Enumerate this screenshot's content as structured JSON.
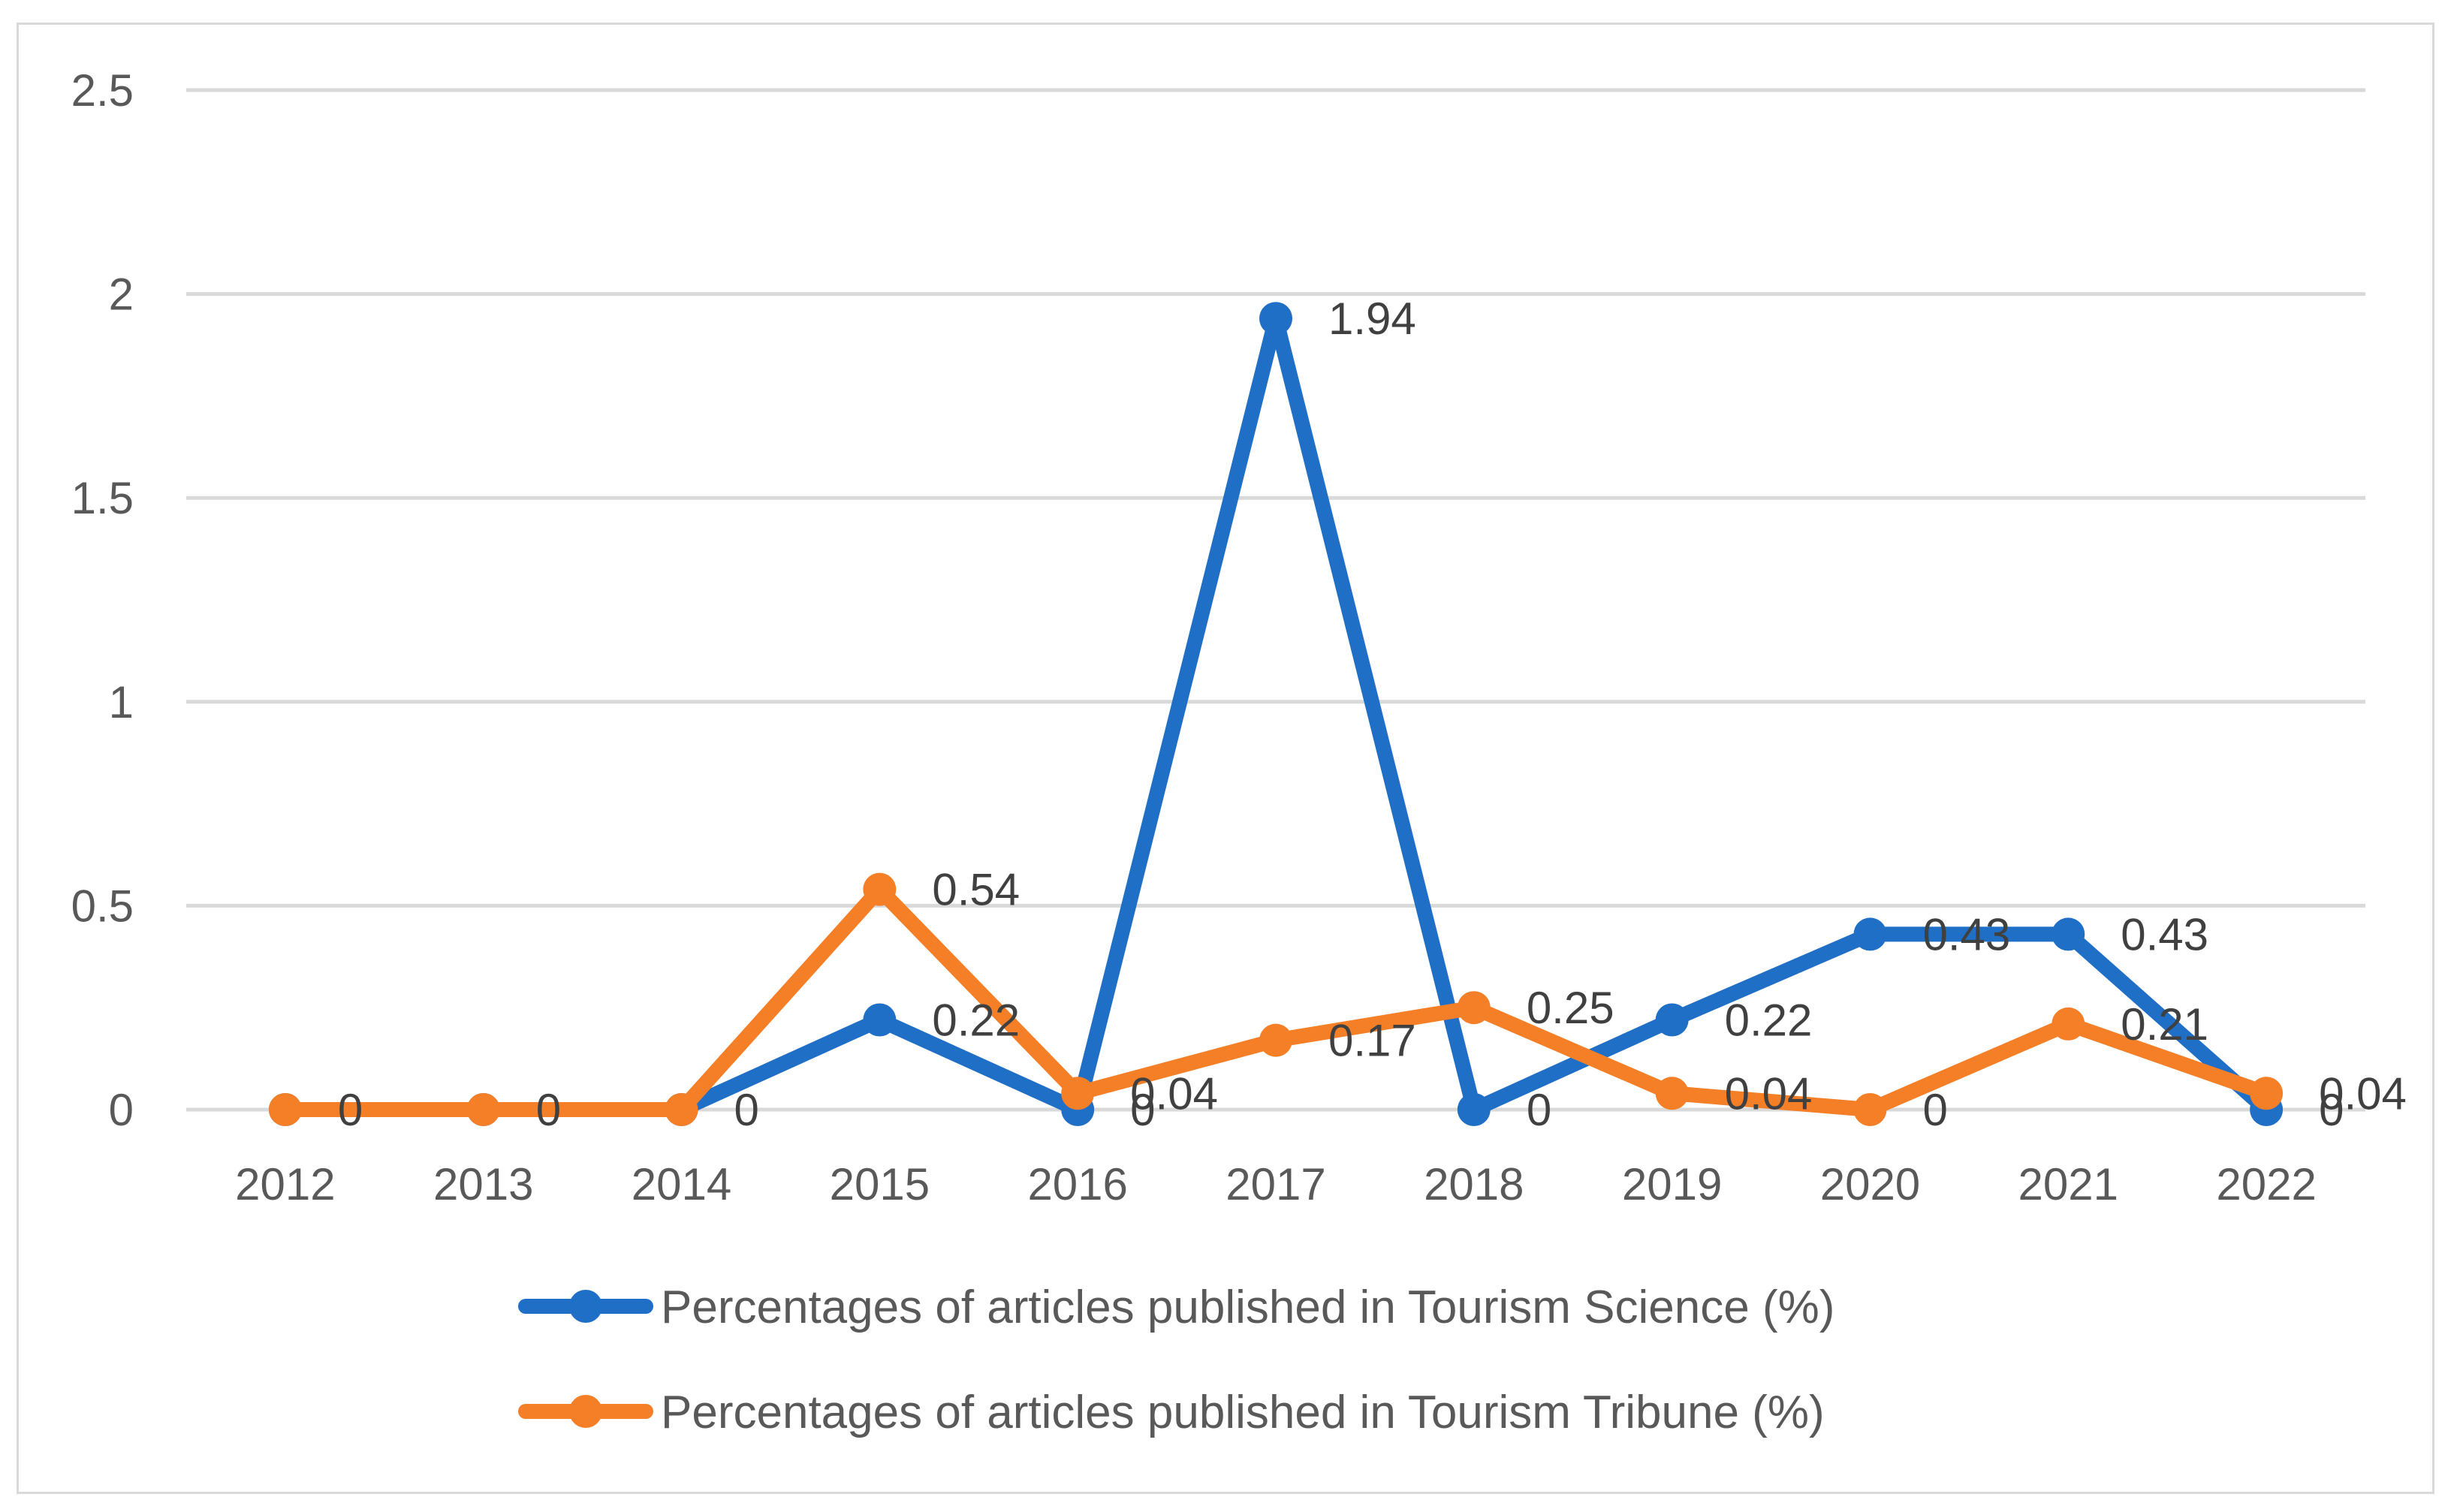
{
  "chart_data": {
    "type": "line",
    "title": "",
    "xlabel": "",
    "ylabel": "",
    "categories": [
      "2012",
      "2013",
      "2014",
      "2015",
      "2016",
      "2017",
      "2018",
      "2019",
      "2020",
      "2021",
      "2022"
    ],
    "ylim": [
      0,
      2.5
    ],
    "yticks": [
      0,
      0.5,
      1,
      1.5,
      2,
      2.5
    ],
    "ytick_labels": [
      "0",
      "0.5",
      "1",
      "1.5",
      "2",
      "2.5"
    ],
    "grid": true,
    "legend_position": "bottom",
    "series": [
      {
        "name": "Percentages of articles published in Tourism Science (%)",
        "color": "#1f6fc6",
        "values": [
          0,
          0,
          0,
          0.22,
          0,
          1.94,
          0,
          0.22,
          0.43,
          0.43,
          0
        ],
        "labels": [
          "0",
          "0",
          "0",
          "0.22",
          "0",
          "1.94",
          "0",
          "0.22",
          "0.43",
          "0.43",
          "0"
        ]
      },
      {
        "name": "Percentages of articles published in Tourism Tribune (%)",
        "color": "#f57f27",
        "values": [
          0,
          0,
          0,
          0.54,
          0.04,
          0.17,
          0.25,
          0.04,
          0,
          0.21,
          0.04
        ],
        "labels": [
          "",
          "",
          "",
          "0.54",
          "0.04",
          "0.17",
          "0.25",
          "0.04",
          "0",
          "0.21",
          "0.04"
        ]
      }
    ]
  }
}
